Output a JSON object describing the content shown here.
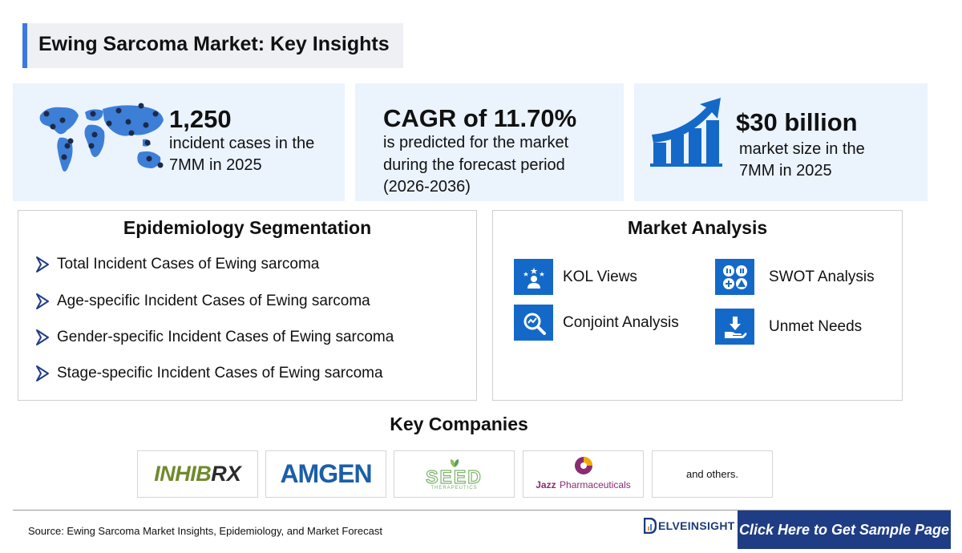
{
  "title": "Ewing Sarcoma Market: Key Insights",
  "kpis": [
    {
      "value": "1,250",
      "line1": "incident cases in the",
      "line2": "7MM in 2025",
      "icon": "world-map-icon"
    },
    {
      "value": "CAGR of 11.70%",
      "line1": "is predicted for the market",
      "line2": "during the forecast period",
      "line3": "(2026-2036)"
    },
    {
      "value": "$30 billion",
      "line1": "market size in the",
      "line2": "7MM in 2025",
      "icon": "growth-bar-chart-icon"
    }
  ],
  "epidemiology": {
    "heading": "Epidemiology Segmentation",
    "items": [
      "Total Incident Cases of Ewing sarcoma",
      "Age-specific Incident Cases of Ewing sarcoma",
      "Gender-specific Incident Cases of Ewing sarcoma",
      "Stage-specific Incident Cases of Ewing sarcoma"
    ]
  },
  "market_analysis": {
    "heading": "Market Analysis",
    "items": [
      {
        "label": "KOL Views",
        "icon": "kol-icon"
      },
      {
        "label": "SWOT Analysis",
        "icon": "swot-icon"
      },
      {
        "label": "Conjoint Analysis",
        "icon": "conjoint-analysis-icon"
      },
      {
        "label": "Unmet Needs",
        "icon": "unmet-needs-icon"
      }
    ]
  },
  "key_companies": {
    "heading": "Key Companies",
    "logos": [
      {
        "name": "INHIBRX",
        "mark": "INHIB",
        "suffix": "RX"
      },
      {
        "name": "AMGEN"
      },
      {
        "name": "SEED",
        "sub": "THERAPEUTICS"
      },
      {
        "name": "Jazz Pharmaceuticals",
        "brand": "Jazz",
        "rest": "Pharmaceuticals"
      }
    ],
    "others": "and others."
  },
  "footer": {
    "source": "Source: Ewing Sarcoma Market Insights, Epidemiology, and Market Forecast",
    "brand": "ELVEINSIGHT",
    "cta": "Click Here to Get Sample Page"
  },
  "colors": {
    "accent": "#3d78e0",
    "icon_blue": "#1469c8",
    "kpi_bg": "#ebf3fd",
    "cta_bg": "#1f3d85"
  }
}
